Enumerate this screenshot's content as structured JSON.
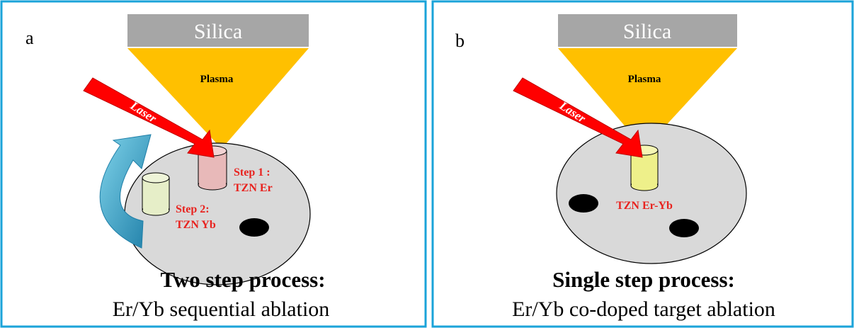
{
  "panels": [
    {
      "letter": "a",
      "substrate": "Silica",
      "plasma": "Plasma",
      "laser": "Laser",
      "targets": [
        {
          "label_lines": [
            "Step 1 :",
            "TZN Er"
          ],
          "color": "#e8b9b9"
        },
        {
          "label_lines": [
            "Step 2:",
            "TZN Yb"
          ],
          "color": "#e6eec8"
        }
      ],
      "caption_title": "Two step process:",
      "caption_sub": "Er/Yb sequential ablation"
    },
    {
      "letter": "b",
      "substrate": "Silica",
      "plasma": "Plasma",
      "laser": "Laser",
      "targets": [
        {
          "label_lines": [
            "TZN Er-Yb"
          ],
          "color": "#eef08a"
        }
      ],
      "caption_title": "Single step process:",
      "caption_sub": "Er/Yb co-doped target ablation"
    }
  ],
  "colors": {
    "border": "#1aa3d9",
    "silica": "#a6a6a6",
    "plasma": "#ffc000",
    "laser": "#ff0000",
    "disk": "#d9d9d9",
    "label_red": "#e8231f",
    "rotation_arrow": "#2aa5c8"
  }
}
